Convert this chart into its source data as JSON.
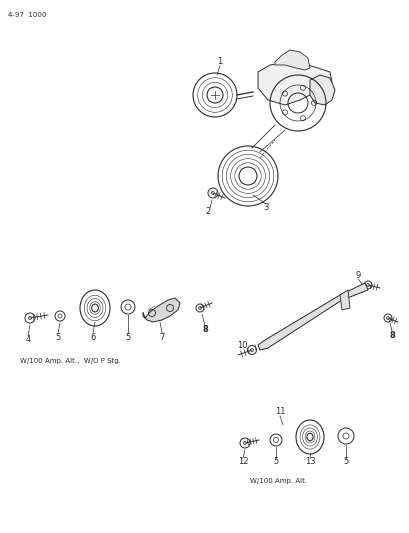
{
  "bg_color": "#ffffff",
  "text_color": "#2a2a2a",
  "fig_width": 4.1,
  "fig_height": 5.33,
  "dpi": 100,
  "page_label": "4-97  1000",
  "caption1": "W/100 Amp. Alt.,  W/O P Stg.",
  "caption2": "W/100 Amp. Alt."
}
